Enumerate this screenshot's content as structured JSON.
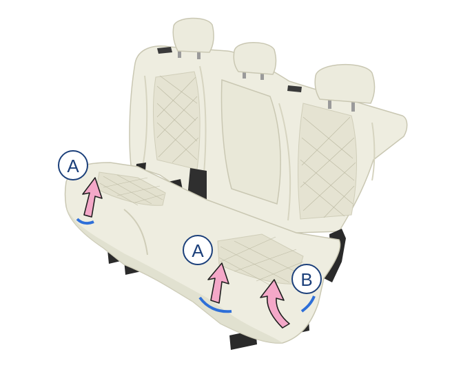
{
  "illustration": {
    "subject": "rear-seat-bench",
    "colors": {
      "upholstery": "#eeede0",
      "upholstery_shade": "#dcdbc9",
      "upholstery_dark": "#c9c7b2",
      "quilt_line": "#bdbba4",
      "plastic": "#2a2a2a",
      "latch_red": "#c0392b",
      "arrow_fill": "#f4a8c8",
      "arrow_stroke": "#1f1f1f",
      "callout_ring": "#1b3f7a",
      "strap_blue": "#2e6fd8"
    },
    "callouts": [
      {
        "id": "A1",
        "label": "A"
      },
      {
        "id": "A2",
        "label": "A"
      },
      {
        "id": "B",
        "label": "B"
      }
    ]
  }
}
